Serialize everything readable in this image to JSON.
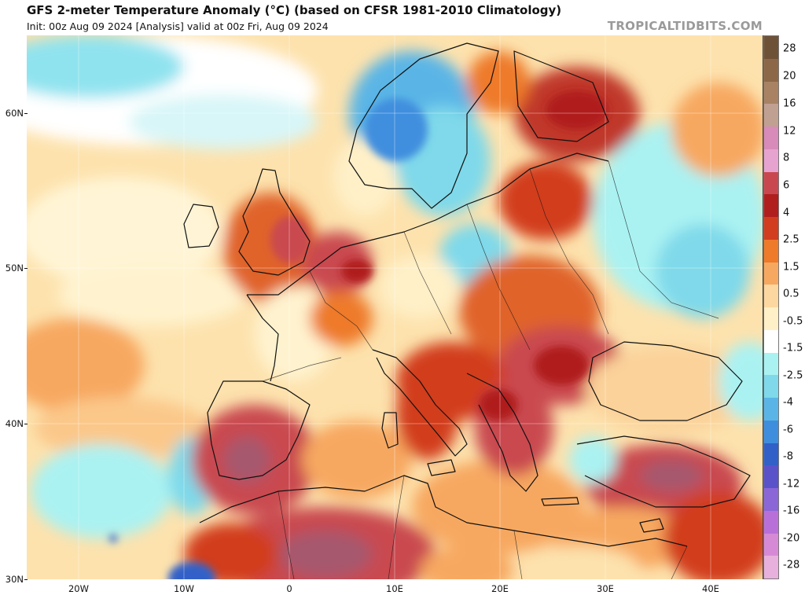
{
  "header": {
    "title": "GFS 2-meter Temperature Anomaly (°C) (based on CFSR 1981-2010 Climatology)",
    "subtitle": "Init: 00z Aug 09 2024   [Analysis]   valid at 00z Fri, Aug 09 2024",
    "site": "TROPICALTIDBITS.COM"
  },
  "axes": {
    "latitude_labels": [
      "60N",
      "50N",
      "40N",
      "30N"
    ],
    "longitude_labels": [
      "20W",
      "10W",
      "0",
      "10E",
      "20E",
      "30E",
      "40E"
    ]
  },
  "legend": {
    "labels": [
      "28",
      "20",
      "16",
      "12",
      "8",
      "6",
      "4",
      "2.5",
      "1.5",
      "0.5",
      "-0.5",
      "-1.5",
      "-2.5",
      "-4",
      "-6",
      "-8",
      "-12",
      "-16",
      "-20",
      "-28"
    ],
    "colors": [
      "#6e5238",
      "#8d6848",
      "#a88263",
      "#c0a091",
      "#d88ab8",
      "#e6a3cf",
      "#c9484f",
      "#b01e1e",
      "#d23c1f",
      "#ee7a2a",
      "#f7a860",
      "#fcd79f",
      "#fff0c8",
      "#ffffff",
      "#aaf2f2",
      "#7fd9ea",
      "#5ab5e6",
      "#3f8ede",
      "#3060c8",
      "#5a52c8",
      "#8a66d6",
      "#b870d8",
      "#d68ad6",
      "#e8b0dc"
    ]
  }
}
